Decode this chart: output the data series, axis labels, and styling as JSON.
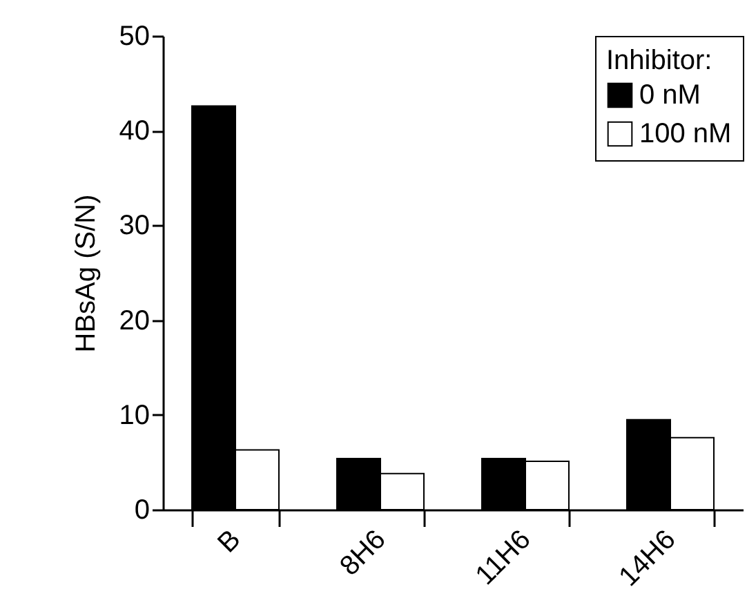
{
  "chart_data": {
    "type": "bar",
    "ylabel": "HBsAg (S/N)",
    "legend_title": "Inhibitor:",
    "categories": [
      "B",
      "8H6",
      "11H6",
      "14H6"
    ],
    "series": [
      {
        "name": "0 nM",
        "color": "#000000",
        "values": [
          42.6,
          5.4,
          5.4,
          9.5
        ]
      },
      {
        "name": "100 nM",
        "color": "#ffffff",
        "values": [
          6.3,
          3.8,
          5.1,
          7.6
        ]
      }
    ],
    "ylim": [
      0,
      50
    ],
    "yticks": [
      0,
      10,
      20,
      30,
      40,
      50
    ],
    "grid": false,
    "legend": "top right"
  }
}
